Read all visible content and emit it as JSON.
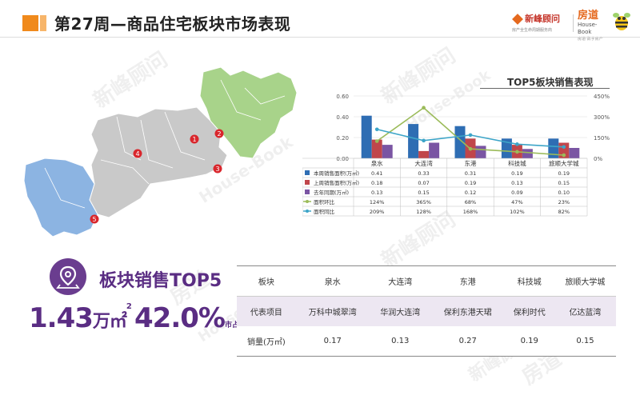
{
  "header": {
    "title": "第27周—商品住宅板块市场表现",
    "logo1_name": "新峰顾问",
    "logo1_sub": "房产全生命周期服务商",
    "logo2_cn": "房道",
    "logo2_en": "House-Book",
    "logo2_sub": "房道·数字房产"
  },
  "watermarks": [
    "新峰顾问",
    "House-Book",
    "房道",
    "新峰顾问",
    "House-Book",
    "新峰顾问",
    "房道",
    "House-Book",
    "新峰顾问"
  ],
  "map": {
    "colors": {
      "blue": "#8cb4e2",
      "green": "#a8d38a",
      "gray": "#c9c9c9",
      "marker": "#d9262c"
    },
    "markers": [
      "1",
      "2",
      "3",
      "4",
      "5"
    ]
  },
  "summary": {
    "title": "板块销售TOP5",
    "area_value": "1.43",
    "area_unit": "万㎡",
    "area_sup": "2",
    "share_value": "42.0%",
    "share_unit": "市占率"
  },
  "chart_data": {
    "type": "bar",
    "title": "TOP5板块销售表现",
    "categories": [
      "泉水",
      "大连湾",
      "东港",
      "科技城",
      "旅顺大学城"
    ],
    "y_left": {
      "ticks": [
        "0.00",
        "0.20",
        "0.40",
        "0.60"
      ],
      "ylim": [
        0,
        0.6
      ]
    },
    "y_right": {
      "ticks": [
        "0%",
        "150%",
        "300%",
        "450%"
      ],
      "ylim": [
        0,
        450
      ]
    },
    "series": [
      {
        "name": "本周销售面积(万㎡)",
        "type": "bar",
        "axis": "left",
        "color": "#2e6db3",
        "values": [
          0.41,
          0.33,
          0.31,
          0.19,
          0.19
        ],
        "labels": [
          "0.41",
          "0.33",
          "0.31",
          "0.19",
          "0.19"
        ]
      },
      {
        "name": "上周销售面积(万㎡)",
        "type": "bar",
        "axis": "left",
        "color": "#c0464b",
        "values": [
          0.18,
          0.07,
          0.19,
          0.13,
          0.15
        ],
        "labels": [
          "0.18",
          "0.07",
          "0.19",
          "0.13",
          "0.15"
        ]
      },
      {
        "name": "去年同期(万㎡)",
        "type": "bar",
        "axis": "left",
        "color": "#7a55a3",
        "values": [
          0.13,
          0.15,
          0.12,
          0.09,
          0.1
        ],
        "labels": [
          "0.13",
          "0.15",
          "0.12",
          "0.09",
          "0.10"
        ]
      },
      {
        "name": "面积环比",
        "type": "line",
        "axis": "right",
        "color": "#9bbb59",
        "values": [
          124,
          365,
          68,
          47,
          23
        ],
        "labels": [
          "124%",
          "365%",
          "68%",
          "47%",
          "23%"
        ]
      },
      {
        "name": "面积同比",
        "type": "line",
        "axis": "right",
        "color": "#3da5c8",
        "values": [
          209,
          128,
          168,
          102,
          82
        ],
        "labels": [
          "209%",
          "128%",
          "168%",
          "102%",
          "82%"
        ]
      }
    ],
    "grid": true
  },
  "table": {
    "row_headers": [
      "板块",
      "代表项目",
      "销量(万㎡)"
    ],
    "columns": [
      "泉水",
      "大连湾",
      "东港",
      "科技城",
      "旅顺大学城"
    ],
    "projects": [
      "万科中城翠湾",
      "华润大连湾",
      "保利东港天珺",
      "保利时代",
      "亿达蓝湾"
    ],
    "sales": [
      "0.17",
      "0.13",
      "0.27",
      "0.19",
      "0.15"
    ]
  },
  "colors": {
    "accent": "#f08a1c",
    "purple": "#5a2d83",
    "table_band": "#ede7f2"
  }
}
